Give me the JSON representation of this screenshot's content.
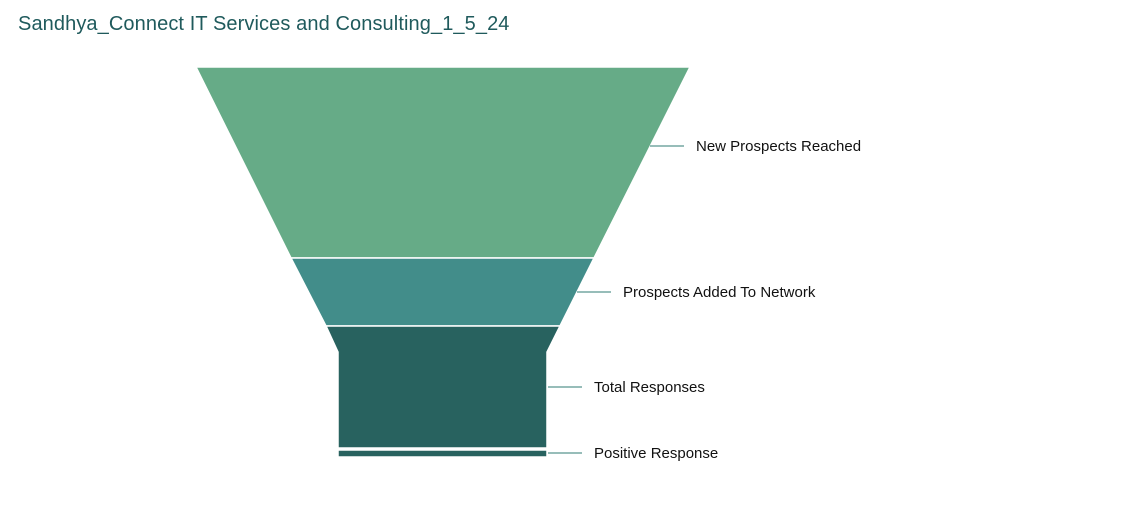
{
  "header": {
    "title": "Sandhya_Connect IT Services and Consulting_1_5_24"
  },
  "chart_data": {
    "type": "funnel",
    "title": "Sandhya_Connect IT Services and Consulting_1_5_24",
    "stages": [
      {
        "label": "New Prospects Reached",
        "color": "#66ab87"
      },
      {
        "label": "Prospects Added To Network",
        "color": "#428d8a"
      },
      {
        "label": "Total Responses",
        "color": "#28625f"
      },
      {
        "label": "Positive Response",
        "color": "#28625f"
      }
    ],
    "divider_color": "#ffffff",
    "leader_color": "#2f7b73",
    "legend": "none"
  }
}
